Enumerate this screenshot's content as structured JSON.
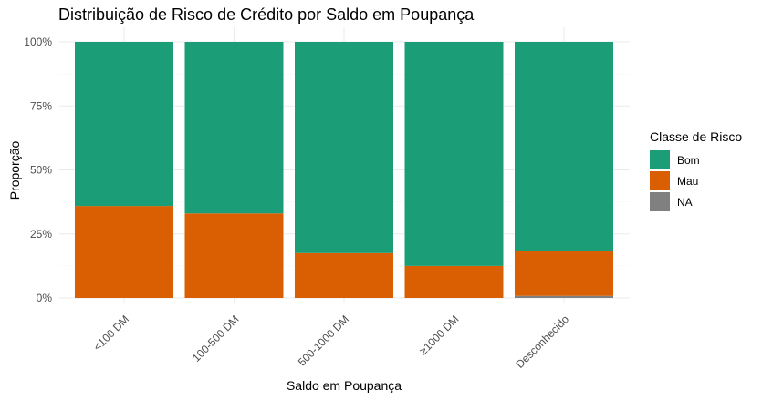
{
  "chart_data": {
    "type": "bar",
    "stacked": true,
    "title": "Distribuição de Risco de Crédito por Saldo em Poupança",
    "xlabel": "Saldo em Poupança",
    "ylabel": "Proporção",
    "ylim": [
      0,
      1
    ],
    "y_ticks": [
      "0%",
      "25%",
      "50%",
      "75%",
      "100%"
    ],
    "categories": [
      "<100 DM",
      "100-500 DM",
      "500-1000 DM",
      "≥1000 DM",
      "Desconhecido"
    ],
    "series": [
      {
        "name": "Bom",
        "color": "#1b9e77",
        "values": [
          0.641,
          0.67,
          0.825,
          0.875,
          0.817
        ]
      },
      {
        "name": "Mau",
        "color": "#d95f02",
        "values": [
          0.359,
          0.33,
          0.175,
          0.125,
          0.175
        ]
      },
      {
        "name": "NA",
        "color": "#808080",
        "values": [
          0.0,
          0.0,
          0.0,
          0.0,
          0.008
        ]
      }
    ],
    "legend": {
      "title": "Classe de Risco",
      "position": "right"
    },
    "grid": true
  }
}
